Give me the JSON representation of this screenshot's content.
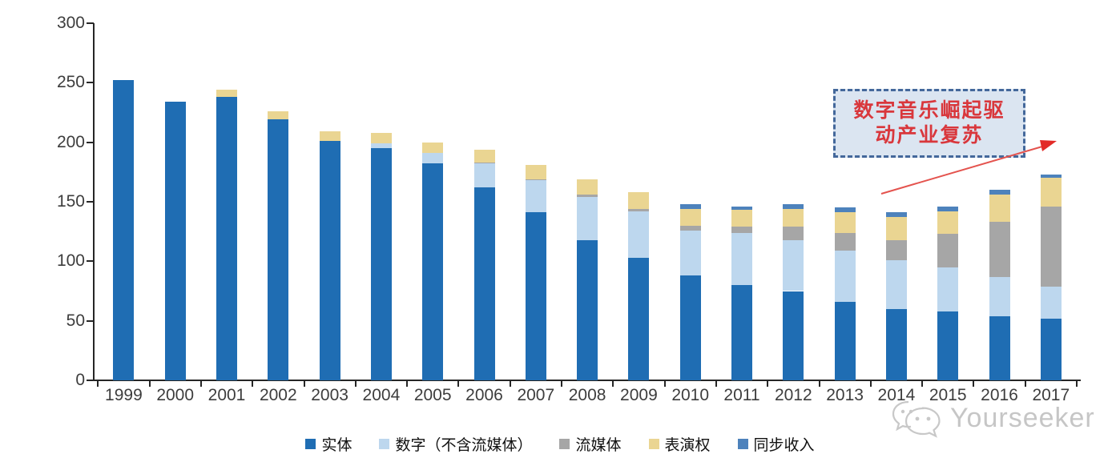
{
  "chart_data": {
    "type": "bar",
    "stacked": true,
    "title": "",
    "xlabel": "",
    "ylabel": "",
    "ylim": [
      0,
      300
    ],
    "yticks": [
      "0",
      "50",
      "100",
      "150",
      "200",
      "250",
      "300"
    ],
    "ytick_values": [
      0,
      50,
      100,
      150,
      200,
      250,
      300
    ],
    "grid": false,
    "legend_position": "bottom",
    "categories": [
      "1999",
      "2000",
      "2001",
      "2002",
      "2003",
      "2004",
      "2005",
      "2006",
      "2007",
      "2008",
      "2009",
      "2010",
      "2011",
      "2012",
      "2013",
      "2014",
      "2015",
      "2016",
      "2017"
    ],
    "series": [
      {
        "key": "physical",
        "name": "实体",
        "color": "#1F6DB3",
        "values": [
          252,
          234,
          238,
          219,
          201,
          195,
          182,
          162,
          141,
          118,
          103,
          88,
          80,
          75,
          66,
          60,
          58,
          54,
          52
        ]
      },
      {
        "key": "digital",
        "name": "数字（不含流媒体）",
        "color": "#BDD7EE",
        "values": [
          0,
          0,
          0,
          0,
          0,
          4,
          9,
          20,
          27,
          36,
          39,
          38,
          44,
          43,
          43,
          41,
          37,
          33,
          27
        ]
      },
      {
        "key": "streaming",
        "name": "流媒体",
        "color": "#A6A6A6",
        "values": [
          0,
          0,
          0,
          0,
          0,
          0,
          0,
          1,
          1,
          2,
          2,
          4,
          5,
          11,
          15,
          17,
          28,
          46,
          67
        ]
      },
      {
        "key": "performance",
        "name": "表演权",
        "color": "#EAD592",
        "values": [
          0,
          0,
          6,
          7,
          8,
          9,
          9,
          11,
          12,
          13,
          14,
          14,
          14,
          15,
          17,
          19,
          19,
          23,
          24
        ]
      },
      {
        "key": "sync",
        "name": "同步收入",
        "color": "#4D82BC",
        "values": [
          0,
          0,
          0,
          0,
          0,
          0,
          0,
          0,
          0,
          0,
          0,
          4,
          3,
          4,
          4,
          4,
          4,
          4,
          3
        ]
      }
    ],
    "annotation": {
      "text": "数字音乐崛起驱动产业复苏",
      "lines": [
        "数字音乐崛起驱",
        "动产业复苏"
      ],
      "box_fill": "#DBE5F1",
      "box_border": "#44689B",
      "text_color": "#D9373C",
      "arrow_color": "#E4534E"
    }
  },
  "watermark": {
    "text": "Yourseeker",
    "color": "#C6C6C6"
  }
}
